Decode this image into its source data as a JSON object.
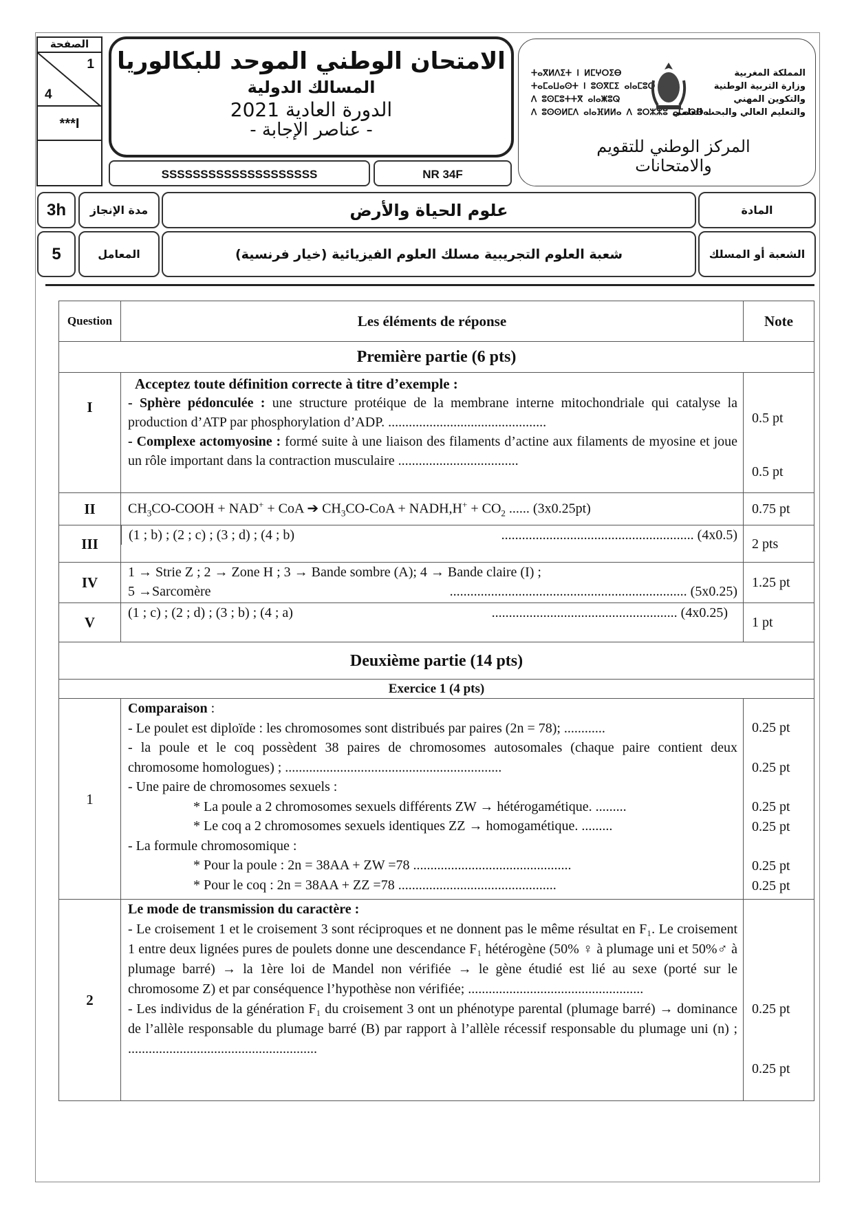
{
  "header": {
    "page_label": "الصفحة",
    "page_num": "1",
    "page_total": "4",
    "marker": "***I",
    "title": "الامتحان الوطني الموحد للبكالوريا",
    "subtitle": "المسالك الدولية",
    "session": "الدورة العادية 2021",
    "doc_type": "- عناصر الإجابة -",
    "code_left": "SSSSSSSSSSSSSSSSSSSS",
    "code_right": "NR 34F",
    "logo": {
      "ar_lines": [
        "المملكة المغربية",
        "وزارة التربية الوطنية",
        "والتكوين المهني",
        "والتعليم العالي والبحث العلمي"
      ],
      "tifinagh_lines": [
        "ⵜⴰⴳⵍⴷⵉⵜ ⵏ ⵍⵎⵖⵔⵉⴱ",
        "ⵜⴰⵎⴰⵡⴰⵙⵜ ⵏ ⵓⵙⴳⵎⵉ ⴰⵏⴰⵎⵓⵔ",
        "ⴷ ⵓⵙⵎⵓⵜⵜⴳ ⴰⵏⴰⵥⵓⵕ",
        "ⴷ ⵓⵙⵙⵍⵎⴷ ⴰⵏⴰⴼⵍⵍⴰ ⴷ ⵓⵔⵣⵣⵓ ⴰⵎⴰⵙⵙⴰⵏ"
      ],
      "center": "المركز الوطني للتقويم والامتحانات"
    },
    "duration": "3h",
    "duration_label": "مدة الإنجاز",
    "subject": "علوم الحياة والأرض",
    "subject_label": "المادة",
    "coef": "5",
    "coef_label": "المعامل",
    "branch": "شعبة العلوم التجريبية مسلك العلوم الفيزيائية  (خيار فرنسية)",
    "branch_label": "الشعبة أو المسلك"
  },
  "table": {
    "col_question": "Question",
    "col_elements": "Les éléments de réponse",
    "col_note": "Note",
    "part1": "Première partie (6 pts)",
    "q1": {
      "id": "I",
      "intro": "Acceptez toute définition correcte à titre d’exemple :",
      "term1": "- Sphère pédonculée :",
      "def1": " une structure protéique de la membrane interne mitochondriale qui catalyse la production d’ATP par phosphorylation d’ADP. ..............................................",
      "term2": "- Complexe actomyosine :",
      "def2": " formé suite à une liaison des filaments d’actine aux filaments de myosine et joue un rôle important dans la contraction musculaire   ...................................",
      "note1": "0.5 pt",
      "note2": "0.5 pt"
    },
    "q2": {
      "id": "II",
      "a": "CH",
      "b": "3",
      "c": "CO-COOH + NAD",
      "d": "+",
      "e": " + CoA ➔ CH",
      "f": "3",
      "g": "CO-CoA + NADH,H",
      "h": "+",
      "i": " + CO",
      "j": "2",
      "k": "  ...... (3x0.25pt)",
      "note": "0.75 pt"
    },
    "q3": {
      "id": "III",
      "text": "(1 ; b) ; (2 ; c) ; (3 ; d) ; (4 ; b)",
      "dots": "........................................................ (4x0.5)",
      "note": "2 pts"
    },
    "q4": {
      "id": "IV",
      "line1": "1 → Strie Z ; 2 → Zone H ; 3 → Bande sombre (A); 4 → Bande claire (I) ;",
      "line2": "5 →Sarcomère",
      "dots": "..................................................................... (5x0.25)",
      "note": "1.25 pt"
    },
    "q5": {
      "id": "V",
      "text": "(1 ; c) ; (2 ; d) ; (3 ; b) ; (4 ; a)",
      "dots": "...................................................... (4x0.25)",
      "note": "1 pt"
    },
    "part2": "Deuxième partie (14 pts)",
    "exercise": "Exercice 1 (4 pts)",
    "e1": {
      "id": "1",
      "title": "Comparaison",
      "title_colon": " :",
      "l1": "- Le poulet est diploïde : les chromosomes sont distribués par paires (2n = 78); ............",
      "l2": "- la poule et le coq possèdent 38 paires de chromosomes autosomales (chaque paire contient deux chromosome homologues) ; ...............................................................",
      "l3": "- Une paire de chromosomes sexuels :",
      "l4": "* La poule a 2 chromosomes sexuels différents ZW → hétérogamétique. .........",
      "l5": "* Le coq a 2 chromosomes sexuels identiques ZZ → homogamétique.  .........",
      "l6": "- La formule chromosomique :",
      "l7": "* Pour la poule :  2n = 38AA + ZW =78  ..............................................",
      "l8": "* Pour le coq :  2n = 38AA + ZZ  =78   ..............................................",
      "notes": [
        "0.25 pt",
        "0.25 pt",
        "0.25 pt",
        "0.25 pt",
        "0.25 pt",
        "0.25 pt"
      ]
    },
    "e2": {
      "id": "2",
      "title": "Le mode de transmission du caractère :",
      "p1": "- Le croisement 1 et le croisement 3 sont réciproques et ne donnent pas le même résultat en F₁. Le croisement 1 entre deux lignées pures de poulets donne une descendance F₁ hétérogène (50% ♀ à plumage uni et 50%♂ à plumage barré) → la 1ère loi de Mandel non vérifiée → le gène étudié est lié au sexe (porté sur le chromosome Z) et par conséquence l’hypothèse non vérifiée;  ...................................................",
      "p2": "- Les individus de la génération F₁ du croisement 3 ont un phénotype parental (plumage barré) → dominance de l’allèle responsable du plumage barré (B) par rapport à l’allèle récessif responsable du plumage uni (n) ;  .......................................................",
      "notes": [
        "0.25 pt",
        "0.25 pt"
      ]
    }
  }
}
